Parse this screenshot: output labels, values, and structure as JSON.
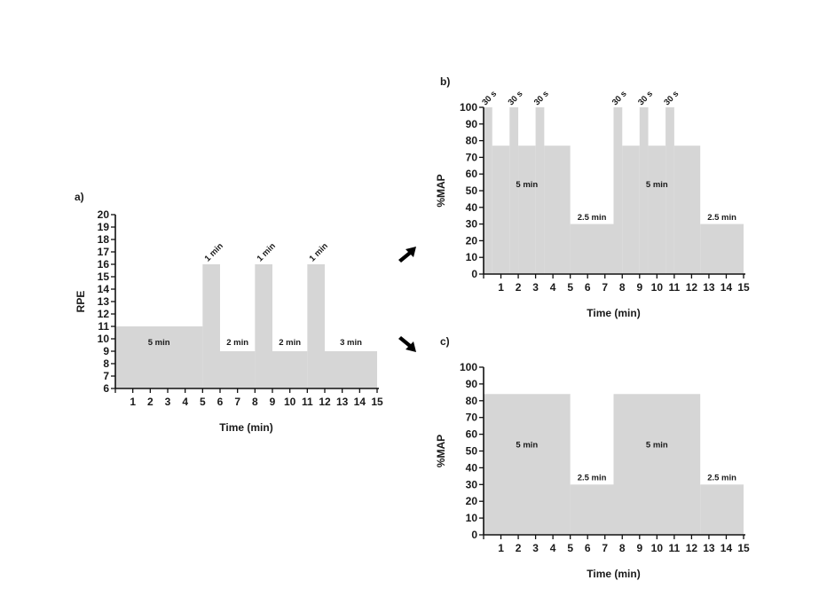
{
  "arrows": {
    "color": "#000000"
  },
  "chart_data": [
    {
      "panel": "a)",
      "type": "area",
      "color": "#d6d6d6",
      "xlabel": "Time (min)",
      "ylabel": "RPE",
      "xlim": [
        0,
        15
      ],
      "ylim": [
        6,
        20
      ],
      "xticks": [
        1,
        2,
        3,
        4,
        5,
        6,
        7,
        8,
        9,
        10,
        11,
        12,
        13,
        14,
        15
      ],
      "yticks": [
        6,
        7,
        8,
        9,
        10,
        11,
        12,
        13,
        14,
        15,
        16,
        17,
        18,
        19,
        20
      ],
      "steps": [
        {
          "x0": 0,
          "x1": 5,
          "y": 11
        },
        {
          "x0": 5,
          "x1": 6,
          "y": 16
        },
        {
          "x0": 6,
          "x1": 8,
          "y": 9
        },
        {
          "x0": 8,
          "x1": 9,
          "y": 16
        },
        {
          "x0": 9,
          "x1": 11,
          "y": 9
        },
        {
          "x0": 11,
          "x1": 12,
          "y": 16
        },
        {
          "x0": 12,
          "x1": 15,
          "y": 9
        }
      ],
      "annotations": [
        {
          "text": "5 min",
          "x": 2.5,
          "y": 9.5
        },
        {
          "text": "1 min",
          "x": 5.3,
          "y": 16.2,
          "rotate": -45
        },
        {
          "text": "2 min",
          "x": 7,
          "y": 9.5
        },
        {
          "text": "1 min",
          "x": 8.3,
          "y": 16.2,
          "rotate": -45
        },
        {
          "text": "2 min",
          "x": 10,
          "y": 9.5
        },
        {
          "text": "1 min",
          "x": 11.3,
          "y": 16.2,
          "rotate": -45
        },
        {
          "text": "3 min",
          "x": 13.5,
          "y": 9.5
        }
      ]
    },
    {
      "panel": "b)",
      "type": "area",
      "color": "#d6d6d6",
      "xlabel": "Time (min)",
      "ylabel": "%MAP",
      "xlim": [
        0,
        15
      ],
      "ylim": [
        0,
        100
      ],
      "xticks": [
        1,
        2,
        3,
        4,
        5,
        6,
        7,
        8,
        9,
        10,
        11,
        12,
        13,
        14,
        15
      ],
      "yticks": [
        0,
        10,
        20,
        30,
        40,
        50,
        60,
        70,
        80,
        90,
        100
      ],
      "steps": [
        {
          "x0": 0,
          "x1": 0.5,
          "y": 100
        },
        {
          "x0": 0.5,
          "x1": 1.5,
          "y": 77
        },
        {
          "x0": 1.5,
          "x1": 2,
          "y": 100
        },
        {
          "x0": 2,
          "x1": 3,
          "y": 77
        },
        {
          "x0": 3,
          "x1": 3.5,
          "y": 100
        },
        {
          "x0": 3.5,
          "x1": 5,
          "y": 77
        },
        {
          "x0": 5,
          "x1": 7.5,
          "y": 30
        },
        {
          "x0": 7.5,
          "x1": 8,
          "y": 100
        },
        {
          "x0": 8,
          "x1": 9,
          "y": 77
        },
        {
          "x0": 9,
          "x1": 9.5,
          "y": 100
        },
        {
          "x0": 9.5,
          "x1": 10.5,
          "y": 77
        },
        {
          "x0": 10.5,
          "x1": 11,
          "y": 100
        },
        {
          "x0": 11,
          "x1": 12.5,
          "y": 77
        },
        {
          "x0": 12.5,
          "x1": 15,
          "y": 30
        }
      ],
      "annotations": [
        {
          "text": "30 s",
          "x": 0.1,
          "y": 101,
          "rotate": -45
        },
        {
          "text": "30 s",
          "x": 1.6,
          "y": 101,
          "rotate": -45
        },
        {
          "text": "30 s",
          "x": 3.1,
          "y": 101,
          "rotate": -45
        },
        {
          "text": "5 min",
          "x": 2.5,
          "y": 52
        },
        {
          "text": "2.5 min",
          "x": 6.25,
          "y": 32.5
        },
        {
          "text": "30 s",
          "x": 7.6,
          "y": 101,
          "rotate": -45
        },
        {
          "text": "30 s",
          "x": 9.1,
          "y": 101,
          "rotate": -45
        },
        {
          "text": "30 s",
          "x": 10.6,
          "y": 101,
          "rotate": -45
        },
        {
          "text": "5 min",
          "x": 10,
          "y": 52
        },
        {
          "text": "2.5 min",
          "x": 13.75,
          "y": 32.5
        }
      ]
    },
    {
      "panel": "c)",
      "type": "area",
      "color": "#d6d6d6",
      "xlabel": "Time (min)",
      "ylabel": "%MAP",
      "xlim": [
        0,
        15
      ],
      "ylim": [
        0,
        100
      ],
      "xticks": [
        1,
        2,
        3,
        4,
        5,
        6,
        7,
        8,
        9,
        10,
        11,
        12,
        13,
        14,
        15
      ],
      "yticks": [
        0,
        10,
        20,
        30,
        40,
        50,
        60,
        70,
        80,
        90,
        100
      ],
      "steps": [
        {
          "x0": 0,
          "x1": 5,
          "y": 84
        },
        {
          "x0": 5,
          "x1": 7.5,
          "y": 30
        },
        {
          "x0": 7.5,
          "x1": 12.5,
          "y": 84
        },
        {
          "x0": 12.5,
          "x1": 15,
          "y": 30
        }
      ],
      "annotations": [
        {
          "text": "5 min",
          "x": 2.5,
          "y": 52
        },
        {
          "text": "2.5 min",
          "x": 6.25,
          "y": 32.5
        },
        {
          "text": "5 min",
          "x": 10,
          "y": 52
        },
        {
          "text": "2.5 min",
          "x": 13.75,
          "y": 32.5
        }
      ]
    }
  ]
}
